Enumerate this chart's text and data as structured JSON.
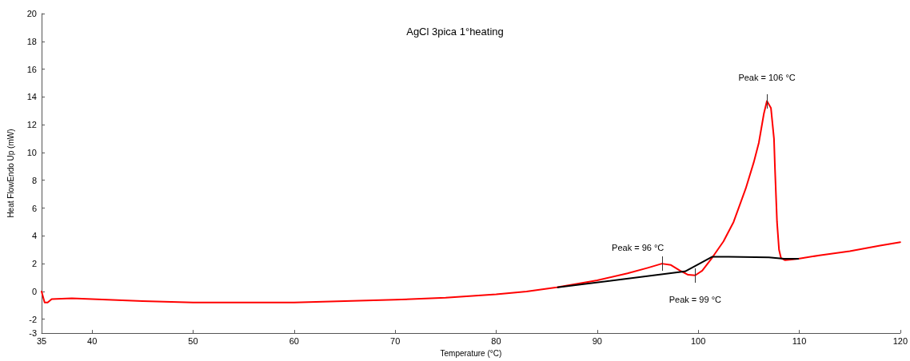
{
  "chart_data": {
    "type": "line",
    "title": "AgCl 3pica 1°heating",
    "xlabel": "Temperature (°C)",
    "ylabel": "Heat FlowEndo Up (mW)",
    "xlim": [
      35,
      120
    ],
    "xticks": [
      35,
      40,
      50,
      60,
      70,
      80,
      90,
      100,
      110,
      120
    ],
    "ylim": [
      -3,
      20
    ],
    "yticks": [
      -3,
      -2,
      0,
      2,
      4,
      6,
      8,
      10,
      12,
      14,
      16,
      18,
      20
    ],
    "grid": false,
    "marker": "none",
    "line_style": "solid",
    "series": [
      {
        "color": "#ff0000",
        "x": [
          35,
          35.3,
          35.6,
          36,
          38,
          40,
          45,
          50,
          55,
          60,
          65,
          70,
          75,
          80,
          83,
          86,
          90,
          93,
          95,
          96.4,
          97.3,
          98.2,
          99,
          99.7,
          100.4,
          101.4,
          102.5,
          103.5,
          104.7,
          105.5,
          106,
          106.5,
          106.8,
          107.2,
          107.5,
          107.6,
          107.8,
          108,
          108.2,
          108.6,
          109.2,
          109.9,
          112,
          115,
          118,
          120
        ],
        "values": [
          0,
          -0.8,
          -0.8,
          -0.55,
          -0.5,
          -0.55,
          -0.7,
          -0.8,
          -0.8,
          -0.8,
          -0.7,
          -0.6,
          -0.45,
          -0.2,
          0.0,
          0.3,
          0.8,
          1.3,
          1.7,
          2.0,
          1.9,
          1.5,
          1.2,
          1.16,
          1.5,
          2.45,
          3.6,
          5.0,
          7.4,
          9.3,
          10.7,
          12.8,
          13.7,
          13.2,
          11,
          8.8,
          5,
          3,
          2.4,
          2.25,
          2.3,
          2.35,
          2.6,
          2.9,
          3.3,
          3.55
        ]
      },
      {
        "color": "#000000",
        "x": [
          86.1,
          98.7,
          101.4,
          103,
          107,
          108.5,
          109.9
        ],
        "values": [
          0.3,
          1.44,
          2.5,
          2.5,
          2.45,
          2.35,
          2.35
        ]
      }
    ],
    "annotations": [
      {
        "text": "Peak = 96 °C",
        "x": 96.4,
        "y": 2.0
      },
      {
        "text": "Peak = 106 °C",
        "x": 106.8,
        "y": 13.7
      },
      {
        "text": "Peak = 99 °C",
        "x": 99.7,
        "y": 1.16
      }
    ]
  }
}
